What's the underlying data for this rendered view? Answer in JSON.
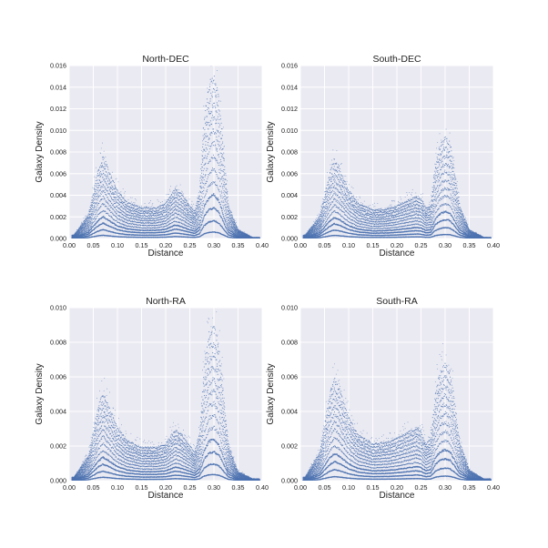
{
  "colors": {
    "panel_bg": "#eaeaf2",
    "grid": "#ffffff",
    "marker": "#4c72b0",
    "text": "#222222"
  },
  "chart_data": [
    {
      "type": "scatter",
      "title": "North-DEC",
      "xlabel": "Distance",
      "ylabel": "Galaxy Density",
      "xlim": [
        0.0,
        0.4
      ],
      "ylim": [
        0.0,
        0.016
      ],
      "xticks": [
        "0.00",
        "0.05",
        "0.10",
        "0.15",
        "0.20",
        "0.25",
        "0.30",
        "0.35",
        "0.40"
      ],
      "yticks": [
        "0.000",
        "0.002",
        "0.004",
        "0.006",
        "0.008",
        "0.010",
        "0.012",
        "0.014",
        "0.016"
      ],
      "grid": true,
      "series": [
        {
          "x": [
            0.01,
            0.04,
            0.06,
            0.07,
            0.08,
            0.1,
            0.12,
            0.15,
            0.18,
            0.2,
            0.22,
            0.23,
            0.25,
            0.26,
            0.27,
            0.28,
            0.29,
            0.3,
            0.31,
            0.32,
            0.33,
            0.35,
            0.38
          ],
          "y": [
            0.0003,
            0.0022,
            0.0062,
            0.0075,
            0.0064,
            0.0043,
            0.0033,
            0.0028,
            0.0028,
            0.0032,
            0.0046,
            0.0042,
            0.003,
            0.0025,
            0.004,
            0.011,
            0.014,
            0.015,
            0.013,
            0.008,
            0.003,
            0.0008,
            0.0001
          ]
        }
      ]
    },
    {
      "type": "scatter",
      "title": "South-DEC",
      "xlabel": "Distance",
      "ylabel": "Galaxy Density",
      "xlim": [
        0.0,
        0.4
      ],
      "ylim": [
        0.0,
        0.016
      ],
      "xticks": [
        "0.00",
        "0.05",
        "0.10",
        "0.15",
        "0.20",
        "0.25",
        "0.30",
        "0.35",
        "0.40"
      ],
      "yticks": [
        "0.000",
        "0.002",
        "0.004",
        "0.006",
        "0.008",
        "0.010",
        "0.012",
        "0.014",
        "0.016"
      ],
      "grid": true,
      "series": [
        {
          "x": [
            0.01,
            0.04,
            0.06,
            0.07,
            0.08,
            0.1,
            0.12,
            0.15,
            0.18,
            0.2,
            0.22,
            0.24,
            0.25,
            0.26,
            0.27,
            0.28,
            0.29,
            0.3,
            0.31,
            0.32,
            0.33,
            0.35,
            0.38
          ],
          "y": [
            0.0003,
            0.002,
            0.0058,
            0.0072,
            0.0065,
            0.0044,
            0.0032,
            0.0026,
            0.0027,
            0.003,
            0.0034,
            0.0038,
            0.0036,
            0.0028,
            0.003,
            0.0068,
            0.0085,
            0.0092,
            0.0088,
            0.006,
            0.003,
            0.0008,
            0.0001
          ]
        }
      ]
    },
    {
      "type": "scatter",
      "title": "North-RA",
      "xlabel": "Distance",
      "ylabel": "Galaxy Density",
      "xlim": [
        0.0,
        0.4
      ],
      "ylim": [
        0.0,
        0.01
      ],
      "xticks": [
        "0.00",
        "0.05",
        "0.10",
        "0.15",
        "0.20",
        "0.25",
        "0.30",
        "0.35",
        "0.40"
      ],
      "yticks": [
        "0.000",
        "0.002",
        "0.004",
        "0.006",
        "0.008",
        "0.010"
      ],
      "grid": true,
      "series": [
        {
          "x": [
            0.01,
            0.04,
            0.06,
            0.07,
            0.08,
            0.1,
            0.12,
            0.15,
            0.18,
            0.2,
            0.22,
            0.23,
            0.25,
            0.26,
            0.27,
            0.28,
            0.29,
            0.3,
            0.31,
            0.32,
            0.33,
            0.35,
            0.38
          ],
          "y": [
            0.0002,
            0.0014,
            0.0042,
            0.005,
            0.0044,
            0.003,
            0.0023,
            0.0019,
            0.0019,
            0.0021,
            0.0029,
            0.0027,
            0.002,
            0.0016,
            0.0026,
            0.0066,
            0.0084,
            0.0088,
            0.0078,
            0.005,
            0.002,
            0.0005,
            0.0001
          ]
        }
      ]
    },
    {
      "type": "scatter",
      "title": "South-RA",
      "xlabel": "Distance",
      "ylabel": "Galaxy Density",
      "xlim": [
        0.0,
        0.4
      ],
      "ylim": [
        0.0,
        0.01
      ],
      "xticks": [
        "0.00",
        "0.05",
        "0.10",
        "0.15",
        "0.20",
        "0.25",
        "0.30",
        "0.35",
        "0.40"
      ],
      "yticks": [
        "0.000",
        "0.002",
        "0.004",
        "0.006",
        "0.008",
        "0.010"
      ],
      "grid": true,
      "series": [
        {
          "x": [
            0.01,
            0.04,
            0.06,
            0.07,
            0.08,
            0.1,
            0.12,
            0.15,
            0.18,
            0.2,
            0.22,
            0.24,
            0.25,
            0.26,
            0.27,
            0.28,
            0.29,
            0.3,
            0.31,
            0.32,
            0.33,
            0.35,
            0.38
          ],
          "y": [
            0.0002,
            0.0016,
            0.0048,
            0.0058,
            0.0053,
            0.0036,
            0.0026,
            0.0021,
            0.0022,
            0.0024,
            0.0027,
            0.003,
            0.0028,
            0.0021,
            0.0024,
            0.005,
            0.0062,
            0.0066,
            0.0062,
            0.0044,
            0.0022,
            0.0006,
            0.0001
          ]
        }
      ]
    }
  ]
}
